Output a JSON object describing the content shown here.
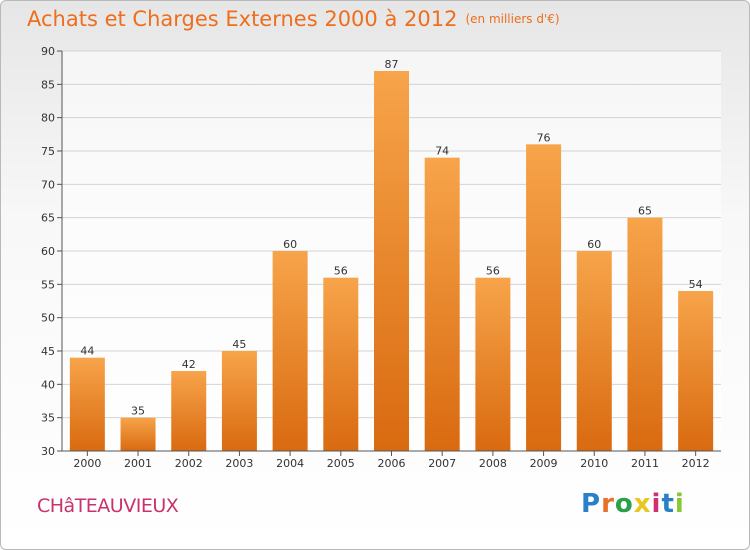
{
  "header": {
    "title": "Achats et Charges Externes 2000 à 2012",
    "subtitle": "(en milliers d'€)"
  },
  "footer": {
    "place": "CHâTEAUVIEUX",
    "logo_letters": [
      "P",
      "r",
      "o",
      "x",
      "i",
      "t",
      "i"
    ],
    "logo_colors": [
      "#2a80c8",
      "#e8702a",
      "#2aa04a",
      "#e8c81e",
      "#d03070",
      "#2a80c8",
      "#8ac832"
    ]
  },
  "chart_data": {
    "type": "bar",
    "categories": [
      "2000",
      "2001",
      "2002",
      "2003",
      "2004",
      "2005",
      "2006",
      "2007",
      "2008",
      "2009",
      "2010",
      "2011",
      "2012"
    ],
    "values": [
      44,
      35,
      42,
      45,
      60,
      56,
      87,
      74,
      56,
      76,
      60,
      65,
      54
    ],
    "title": "Achats et Charges Externes 2000 à 2012",
    "subtitle": "(en milliers d'€)",
    "ylim": [
      30,
      90
    ],
    "yticks": [
      30,
      35,
      40,
      45,
      50,
      55,
      60,
      65,
      70,
      75,
      80,
      85,
      90
    ],
    "grid": true,
    "bar_color": "#f0962e"
  }
}
